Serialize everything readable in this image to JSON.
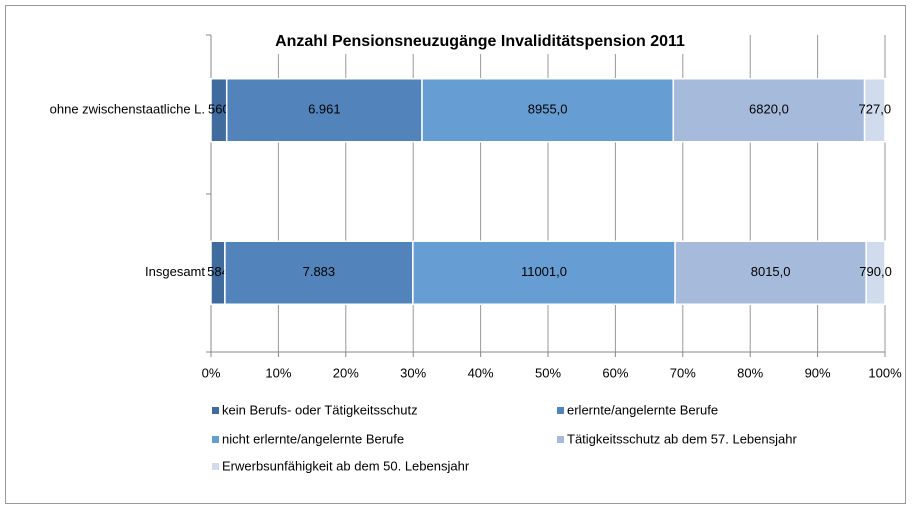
{
  "chart_data": {
    "type": "bar",
    "orientation": "horizontal",
    "stacked": "percent",
    "title": "Anzahl Pensionsneuzugänge Invaliditätspension 2011",
    "categories": [
      "ohne zwischenstaatliche L.",
      "Insgesamt"
    ],
    "series": [
      {
        "name": "kein Berufs- oder Tätigkeitsschutz",
        "color": "#3f6b9e",
        "values": [
          560,
          584
        ],
        "value_labels": [
          "560",
          "584"
        ]
      },
      {
        "name": "erlernte/angelernte Berufe",
        "color": "#5284bb",
        "values": [
          6961,
          7883
        ],
        "value_labels": [
          "6.961",
          "7.883"
        ]
      },
      {
        "name": "nicht erlernte/angelernte Berufe",
        "color": "#669dd3",
        "values": [
          8955,
          11001
        ],
        "value_labels": [
          "8955,0",
          "11001,0"
        ]
      },
      {
        "name": "Tätigkeitsschutz ab dem 57. Lebensjahr",
        "color": "#a6bbdc",
        "values": [
          6820,
          8015
        ],
        "value_labels": [
          "6820,0",
          "8015,0"
        ]
      },
      {
        "name": "Erwerbsunfähigkeit ab dem 50. Lebensjahr",
        "color": "#d0dcee",
        "values": [
          727,
          790
        ],
        "value_labels": [
          "727,0",
          "790,0"
        ]
      }
    ],
    "xlim": [
      0,
      100
    ],
    "xticks": [
      {
        "value": 0,
        "label": "0%"
      },
      {
        "value": 10,
        "label": "10%"
      },
      {
        "value": 20,
        "label": "20%"
      },
      {
        "value": 30,
        "label": "30%"
      },
      {
        "value": 40,
        "label": "40%"
      },
      {
        "value": 50,
        "label": "50%"
      },
      {
        "value": 60,
        "label": "60%"
      },
      {
        "value": 70,
        "label": "70%"
      },
      {
        "value": 80,
        "label": "80%"
      },
      {
        "value": 90,
        "label": "90%"
      },
      {
        "value": 100,
        "label": "100%"
      }
    ],
    "grid": true,
    "legend": "bottom"
  }
}
